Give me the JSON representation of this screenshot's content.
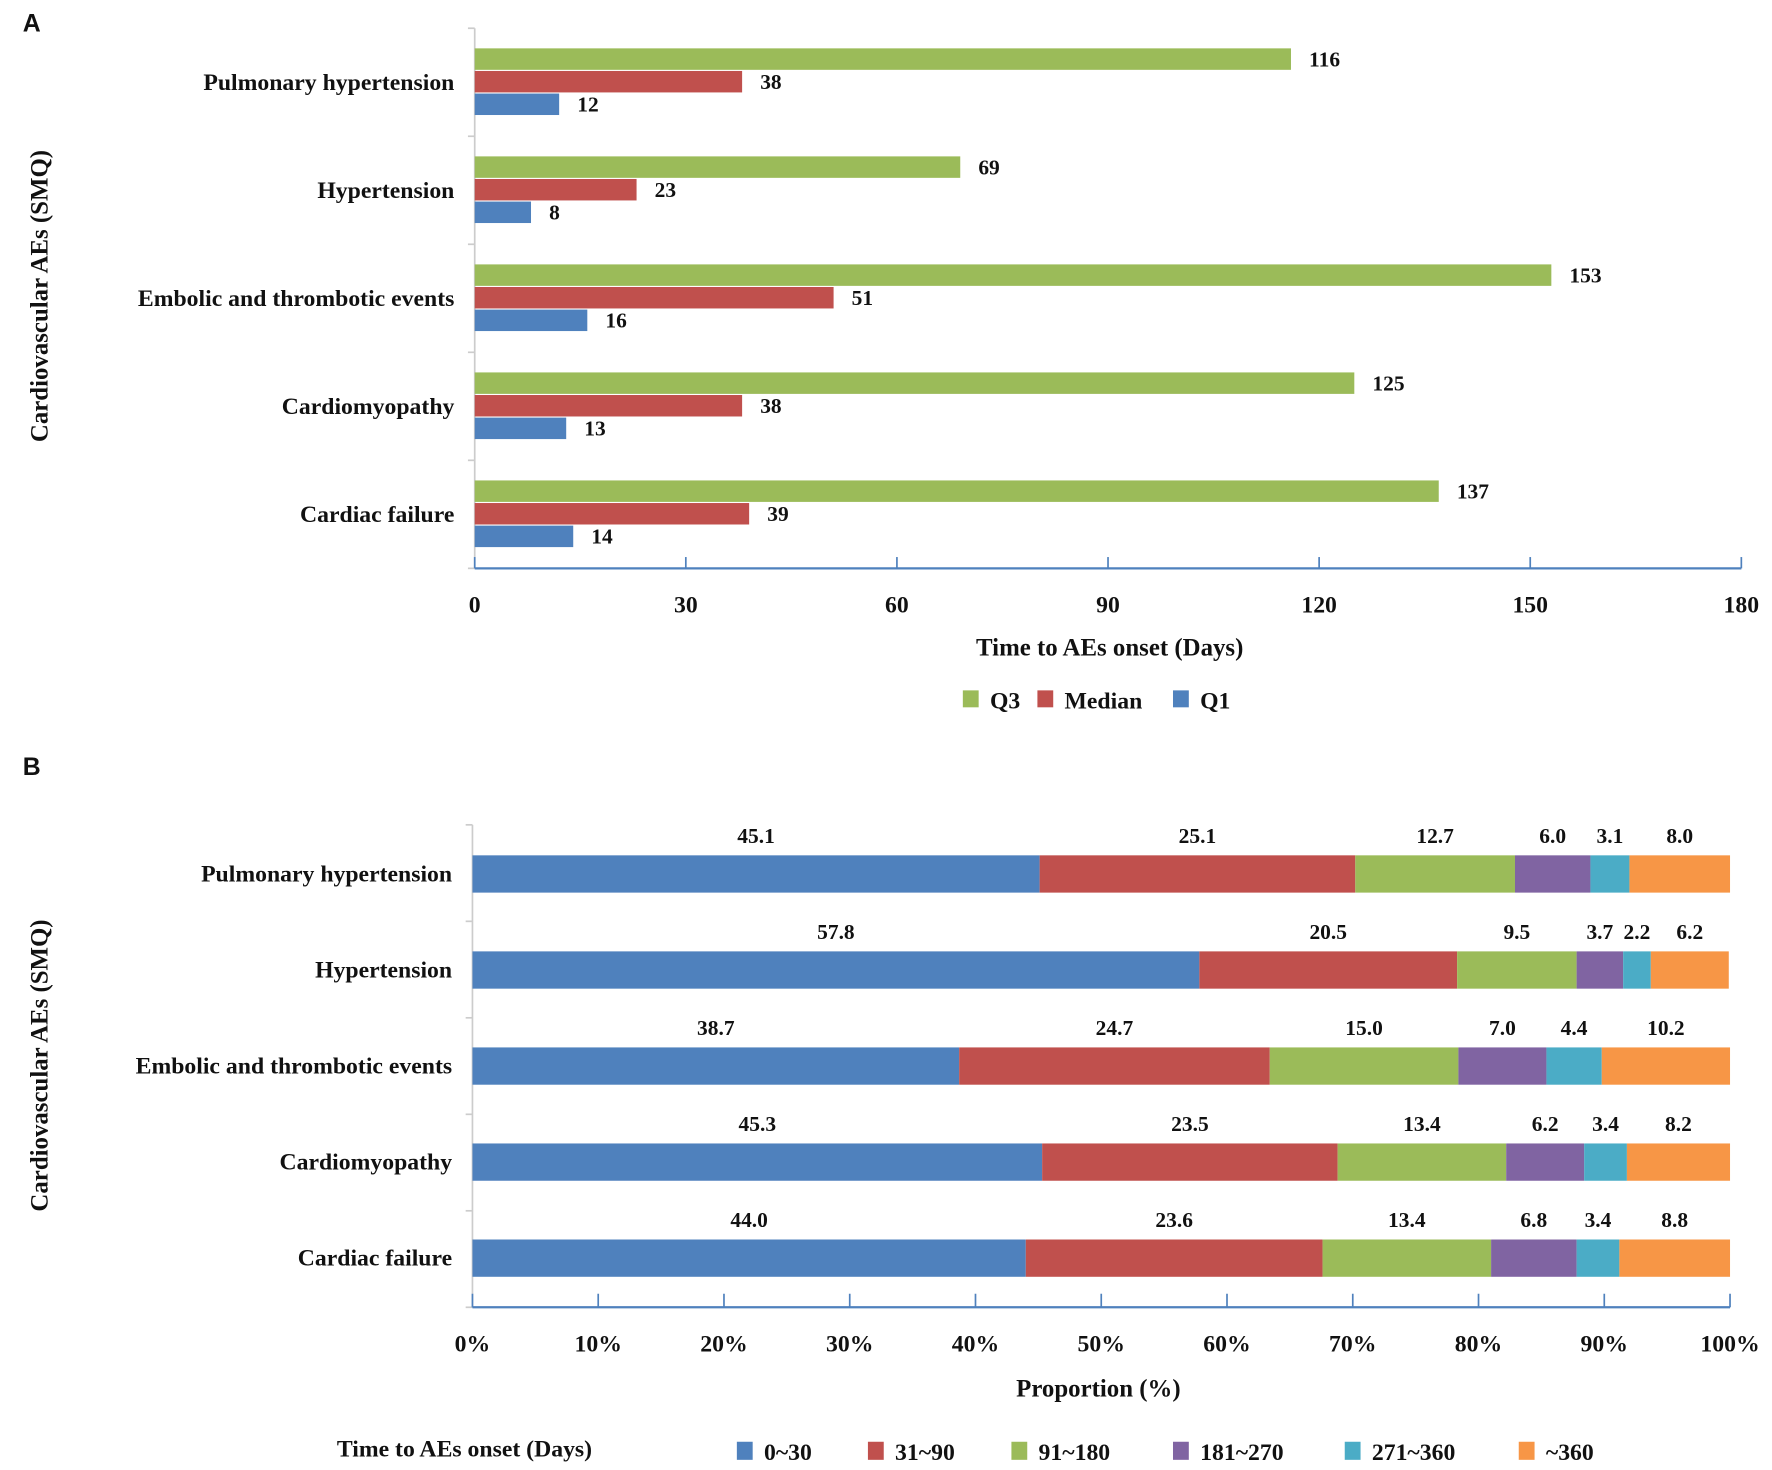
{
  "chart_data": [
    {
      "panel_label": "A",
      "type": "bar",
      "orientation": "horizontal",
      "categories": [
        "Pulmonary hypertension",
        "Hypertension",
        "Embolic and thrombotic events",
        "Cardiomyopathy",
        "Cardiac failure"
      ],
      "series": [
        {
          "name": "Q3",
          "color": "#9bbb59",
          "values": [
            116,
            69,
            153,
            125,
            137
          ]
        },
        {
          "name": "Median",
          "color": "#c0504d",
          "values": [
            38,
            23,
            51,
            38,
            39
          ]
        },
        {
          "name": "Q1",
          "color": "#4f81bd",
          "values": [
            12,
            8,
            16,
            13,
            14
          ]
        }
      ],
      "xlabel": "Time to AEs onset (Days)",
      "ylabel": "Cardiovascular AEs (SMQ)",
      "xlim": [
        0,
        180
      ],
      "xticks": [
        "0",
        "30",
        "60",
        "90",
        "120",
        "150",
        "180"
      ],
      "grid": false,
      "legend": "bottom"
    },
    {
      "panel_label": "B",
      "type": "bar",
      "orientation": "horizontal",
      "stacked": true,
      "categories": [
        "Pulmonary hypertension",
        "Hypertension",
        "Embolic and thrombotic events",
        "Cardiomyopathy",
        "Cardiac failure"
      ],
      "series": [
        {
          "name": "0~30",
          "color": "#4f81bd",
          "values": [
            45.1,
            57.8,
            38.7,
            45.3,
            44.0
          ]
        },
        {
          "name": "31~90",
          "color": "#c0504d",
          "values": [
            25.1,
            20.5,
            24.7,
            23.5,
            23.6
          ]
        },
        {
          "name": "91~180",
          "color": "#9bbb59",
          "values": [
            12.7,
            9.5,
            15.0,
            13.4,
            13.4
          ]
        },
        {
          "name": "181~270",
          "color": "#8064a2",
          "values": [
            6.0,
            3.7,
            7.0,
            6.2,
            6.8
          ]
        },
        {
          "name": "271~360",
          "color": "#4bacc6",
          "values": [
            3.1,
            2.2,
            4.4,
            3.4,
            3.4
          ]
        },
        {
          "name": "~360",
          "color": "#f79646",
          "values": [
            8.0,
            6.2,
            10.2,
            8.2,
            8.8
          ]
        }
      ],
      "xlabel": "Proportion  (%)",
      "ylabel": "Cardiovascular AEs (SMQ)",
      "xlim": [
        0,
        100
      ],
      "xticks": [
        "0%",
        "10%",
        "20%",
        "30%",
        "40%",
        "50%",
        "60%",
        "70%",
        "80%",
        "90%",
        "100%"
      ],
      "legend_title": "Time to AEs onset (Days)",
      "grid": false,
      "legend": "bottom"
    }
  ]
}
